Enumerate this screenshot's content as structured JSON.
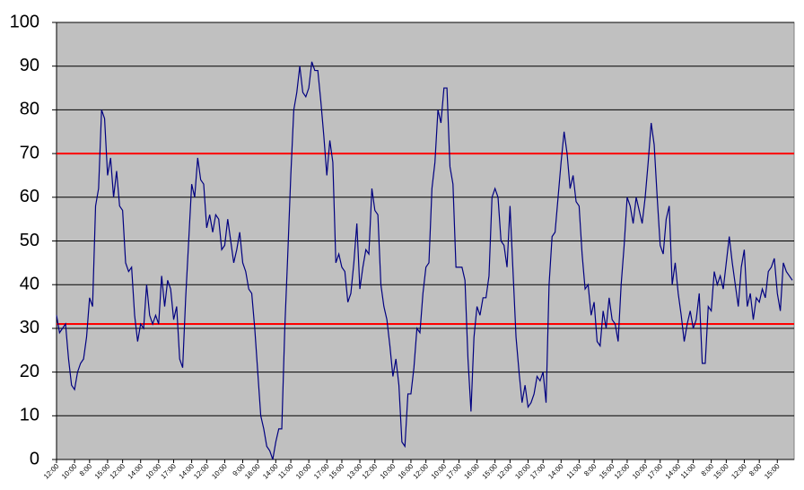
{
  "chart_data": {
    "type": "line",
    "categories": [
      "12:00",
      null,
      null,
      null,
      null,
      null,
      "10:00",
      null,
      null,
      null,
      null,
      "8:00",
      null,
      null,
      null,
      null,
      null,
      "15:00",
      null,
      null,
      null,
      null,
      "12:00",
      null,
      null,
      null,
      null,
      null,
      "14:00",
      null,
      null,
      null,
      null,
      null,
      "10:00",
      null,
      null,
      null,
      null,
      "17:00",
      null,
      null,
      null,
      null,
      null,
      "14:00",
      null,
      null,
      null,
      null,
      "12:00",
      null,
      null,
      null,
      null,
      null,
      "10:00",
      null,
      null,
      null,
      null,
      null,
      "9:00",
      null,
      null,
      null,
      null,
      "16:00",
      null,
      null,
      null,
      null,
      null,
      "14:00",
      null,
      null,
      null,
      null,
      "11:00",
      null,
      null,
      null,
      null,
      null,
      "10:00",
      null,
      null,
      null,
      null,
      null,
      "17:00",
      null,
      null,
      null,
      null,
      "15:00",
      null,
      null,
      null,
      null,
      null,
      "13:00",
      null,
      null,
      null,
      null,
      "12:00",
      null,
      null,
      null,
      null,
      null,
      "10:00",
      null,
      null,
      null,
      null,
      null,
      "16:00",
      null,
      null,
      null,
      null,
      "12:00",
      null,
      null,
      null,
      null,
      null,
      "10:00",
      null,
      null,
      null,
      null,
      "17:00",
      null,
      null,
      null,
      null,
      null,
      "16:00",
      null,
      null,
      null,
      null,
      null,
      "15:00",
      null,
      null,
      null,
      null,
      "12:00",
      null,
      null,
      null,
      null,
      null,
      "10:00",
      null,
      null,
      null,
      null,
      "17:00",
      null,
      null,
      null,
      null,
      null,
      "14:00",
      null,
      null,
      null,
      null,
      null,
      "11:00",
      null,
      null,
      null,
      null,
      "8:00",
      null,
      null,
      null,
      null,
      null,
      "15:00",
      null,
      null,
      null,
      null,
      "12:00",
      null,
      null,
      null,
      null,
      null,
      "10:00",
      null,
      null,
      null,
      null,
      "17:00",
      null,
      null,
      null,
      null,
      null,
      "14:00",
      null,
      null,
      null,
      null,
      "11:00",
      null,
      null,
      null,
      null,
      null,
      "8:00",
      null,
      null,
      null,
      null,
      "15:00",
      null,
      null,
      null,
      null,
      null,
      "12:00",
      null,
      null,
      null,
      null,
      "8:00",
      null,
      null,
      null,
      null,
      null,
      "15:00",
      null,
      null,
      null,
      null,
      null
    ],
    "series": [
      {
        "color": "#000080",
        "values": [
          33,
          29,
          30,
          31,
          23,
          17,
          16,
          20,
          22,
          23,
          28,
          37,
          35,
          58,
          62,
          80,
          78,
          65,
          69,
          60,
          66,
          58,
          57,
          45,
          43,
          44,
          33,
          27,
          31,
          30,
          40,
          33,
          31,
          33,
          31,
          42,
          35,
          41,
          39,
          32,
          35,
          23,
          21,
          37,
          50,
          63,
          60,
          69,
          64,
          63,
          53,
          56,
          52,
          56,
          55,
          48,
          49,
          55,
          50,
          45,
          48,
          52,
          45,
          43,
          39,
          38,
          30,
          20,
          10,
          7,
          3,
          2,
          0,
          4,
          7,
          7,
          30,
          47,
          65,
          80,
          84,
          90,
          84,
          83,
          85,
          91,
          89,
          89,
          82,
          74,
          65,
          73,
          68,
          45,
          47,
          44,
          43,
          36,
          38,
          45,
          54,
          39,
          44,
          48,
          47,
          62,
          57,
          56,
          40,
          35,
          32,
          26,
          19,
          23,
          17,
          4,
          3,
          15,
          15,
          21,
          30,
          29,
          38,
          44,
          45,
          62,
          68,
          80,
          77,
          85,
          85,
          67,
          63,
          44,
          44,
          44,
          41,
          23,
          11,
          28,
          35,
          33,
          37,
          37,
          42,
          60,
          62,
          60,
          50,
          49,
          44,
          58,
          43,
          28,
          20,
          13,
          17,
          12,
          13,
          15,
          19,
          18,
          20,
          13,
          40,
          51,
          52,
          60,
          68,
          75,
          70,
          62,
          65,
          59,
          58,
          47,
          39,
          40,
          33,
          36,
          27,
          26,
          34,
          30,
          37,
          32,
          31,
          27,
          40,
          49,
          60,
          58,
          54,
          60,
          57,
          54,
          60,
          68,
          77,
          72,
          60,
          49,
          47,
          55,
          58,
          40,
          45,
          38,
          33,
          27,
          31,
          34,
          30,
          32,
          38,
          22,
          22,
          35,
          34,
          43,
          40,
          42,
          39,
          45,
          51,
          45,
          40,
          35,
          44,
          48,
          35,
          38,
          32,
          37,
          36,
          39,
          37,
          43,
          44,
          46,
          38,
          34,
          45,
          43,
          42,
          41
        ]
      }
    ],
    "ylim": [
      0,
      100
    ],
    "yticks": [
      0,
      10,
      20,
      30,
      40,
      50,
      60,
      70,
      80,
      90,
      100
    ],
    "grid": true,
    "reference_lines": [
      70,
      31
    ],
    "reference_color": "#ff0000",
    "plot_background": "#c0c0c0"
  }
}
